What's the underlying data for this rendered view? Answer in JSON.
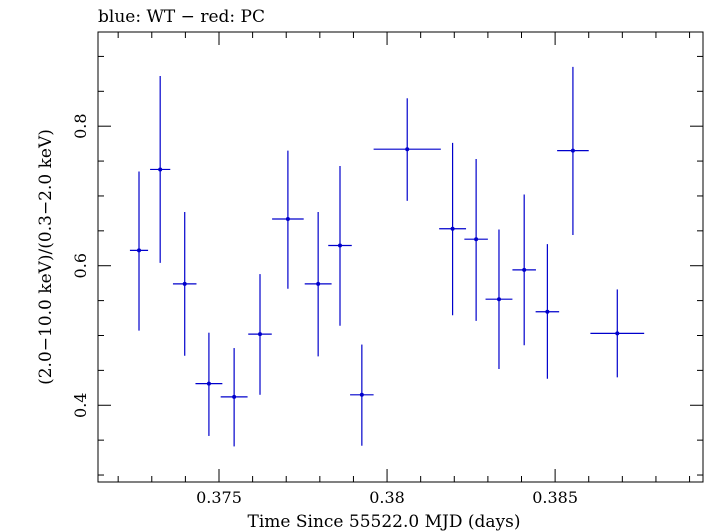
{
  "chart_data": {
    "type": "scatter",
    "title": "blue: WT − red: PC",
    "xlabel": "Time Since 55522.0 MJD (days)",
    "ylabel": "(2.0−10.0 keV)/(0.3−2.0 keV)",
    "xlim": [
      0.3714,
      0.3894
    ],
    "ylim": [
      0.29,
      0.935
    ],
    "xticks": [
      {
        "value": 0.375,
        "label": "0.375"
      },
      {
        "value": 0.38,
        "label": "0.38"
      },
      {
        "value": 0.385,
        "label": "0.385"
      }
    ],
    "yticks": [
      {
        "value": 0.4,
        "label": "0.4"
      },
      {
        "value": 0.6,
        "label": "0.6"
      },
      {
        "value": 0.8,
        "label": "0.8"
      }
    ],
    "series": [
      {
        "color": "#0000cc",
        "points": [
          {
            "x": 0.37262,
            "xerr": 0.00027,
            "y": 0.622,
            "yerr_lo": 0.115,
            "yerr_hi": 0.113
          },
          {
            "x": 0.37325,
            "xerr": 0.0003,
            "y": 0.738,
            "yerr_lo": 0.134,
            "yerr_hi": 0.134
          },
          {
            "x": 0.37398,
            "xerr": 0.00035,
            "y": 0.574,
            "yerr_lo": 0.103,
            "yerr_hi": 0.103
          },
          {
            "x": 0.3747,
            "xerr": 0.0004,
            "y": 0.431,
            "yerr_lo": 0.075,
            "yerr_hi": 0.073
          },
          {
            "x": 0.37545,
            "xerr": 0.0004,
            "y": 0.412,
            "yerr_lo": 0.071,
            "yerr_hi": 0.07
          },
          {
            "x": 0.37622,
            "xerr": 0.00035,
            "y": 0.502,
            "yerr_lo": 0.087,
            "yerr_hi": 0.086
          },
          {
            "x": 0.37705,
            "xerr": 0.00047,
            "y": 0.667,
            "yerr_lo": 0.1,
            "yerr_hi": 0.098
          },
          {
            "x": 0.37795,
            "xerr": 0.0004,
            "y": 0.574,
            "yerr_lo": 0.104,
            "yerr_hi": 0.103
          },
          {
            "x": 0.3786,
            "xerr": 0.00035,
            "y": 0.629,
            "yerr_lo": 0.115,
            "yerr_hi": 0.114
          },
          {
            "x": 0.37925,
            "xerr": 0.00035,
            "y": 0.415,
            "yerr_lo": 0.073,
            "yerr_hi": 0.072
          },
          {
            "x": 0.3806,
            "xerr": 0.001,
            "y": 0.767,
            "yerr_lo": 0.074,
            "yerr_hi": 0.073
          },
          {
            "x": 0.38195,
            "xerr": 0.0004,
            "y": 0.653,
            "yerr_lo": 0.124,
            "yerr_hi": 0.123
          },
          {
            "x": 0.38265,
            "xerr": 0.00035,
            "y": 0.638,
            "yerr_lo": 0.117,
            "yerr_hi": 0.115
          },
          {
            "x": 0.38333,
            "xerr": 0.0004,
            "y": 0.552,
            "yerr_lo": 0.1,
            "yerr_hi": 0.1
          },
          {
            "x": 0.38408,
            "xerr": 0.00035,
            "y": 0.594,
            "yerr_lo": 0.108,
            "yerr_hi": 0.108
          },
          {
            "x": 0.38477,
            "xerr": 0.00035,
            "y": 0.534,
            "yerr_lo": 0.096,
            "yerr_hi": 0.097
          },
          {
            "x": 0.38553,
            "xerr": 0.00047,
            "y": 0.765,
            "yerr_lo": 0.121,
            "yerr_hi": 0.12
          },
          {
            "x": 0.38685,
            "xerr": 0.0008,
            "y": 0.503,
            "yerr_lo": 0.063,
            "yerr_hi": 0.063
          }
        ]
      }
    ],
    "grid": false,
    "legend": "none"
  }
}
